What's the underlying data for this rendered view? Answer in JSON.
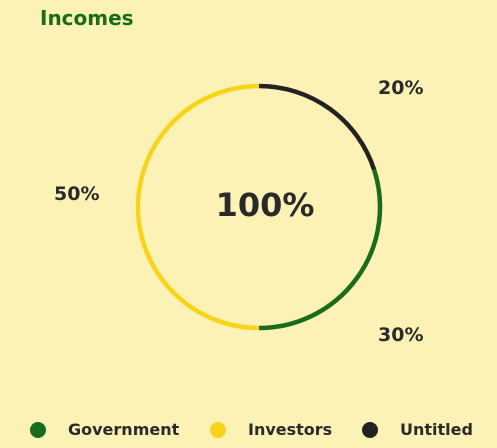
{
  "chart_data": {
    "type": "pie",
    "title": "Incomes",
    "center_label": "100%",
    "categories": [
      "Government",
      "Investors",
      "Untitled"
    ],
    "values": [
      30,
      50,
      20
    ],
    "value_labels": [
      "30%",
      "50%",
      "20%"
    ],
    "colors": [
      "#1a6b1a",
      "#f7d417",
      "#222222"
    ],
    "legend_position": "bottom"
  }
}
